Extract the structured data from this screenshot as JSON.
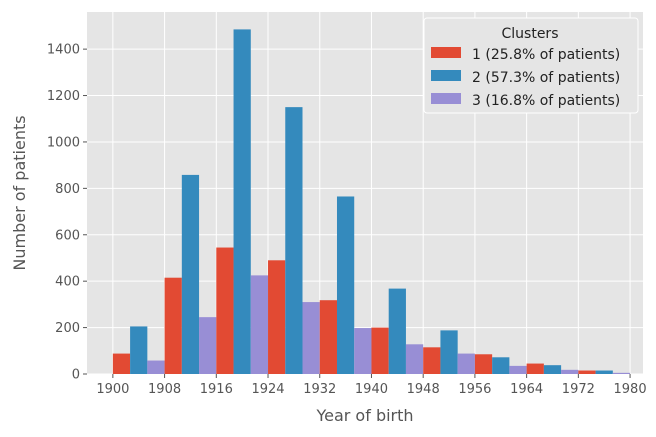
{
  "chart_data": {
    "type": "bar",
    "xlabel": "Year of birth",
    "ylabel": "Number of patients",
    "xlim": [
      1896,
      1982
    ],
    "ylim": [
      0,
      1560
    ],
    "x_ticks": [
      1900,
      1908,
      1916,
      1924,
      1932,
      1940,
      1948,
      1956,
      1964,
      1972,
      1980
    ],
    "y_ticks": [
      0,
      200,
      400,
      600,
      800,
      1000,
      1200,
      1400
    ],
    "grid": true,
    "legend": {
      "title": "Clusters",
      "placement": "top-right"
    },
    "bin_starts": [
      1900,
      1908,
      1916,
      1924,
      1932,
      1940,
      1948,
      1956,
      1964,
      1972
    ],
    "bin_width": 8,
    "series": [
      {
        "name": "1 (25.8% of patients)",
        "color": "#E24A33",
        "values": [
          88,
          415,
          545,
          490,
          318,
          200,
          115,
          85,
          45,
          15
        ]
      },
      {
        "name": "2 (57.3% of patients)",
        "color": "#348ABD",
        "values": [
          205,
          858,
          1485,
          1150,
          765,
          368,
          188,
          72,
          38,
          15
        ]
      },
      {
        "name": "3 (16.8% of patients)",
        "color": "#988ED5",
        "values": [
          58,
          245,
          425,
          310,
          198,
          128,
          88,
          35,
          18,
          5
        ]
      }
    ]
  }
}
